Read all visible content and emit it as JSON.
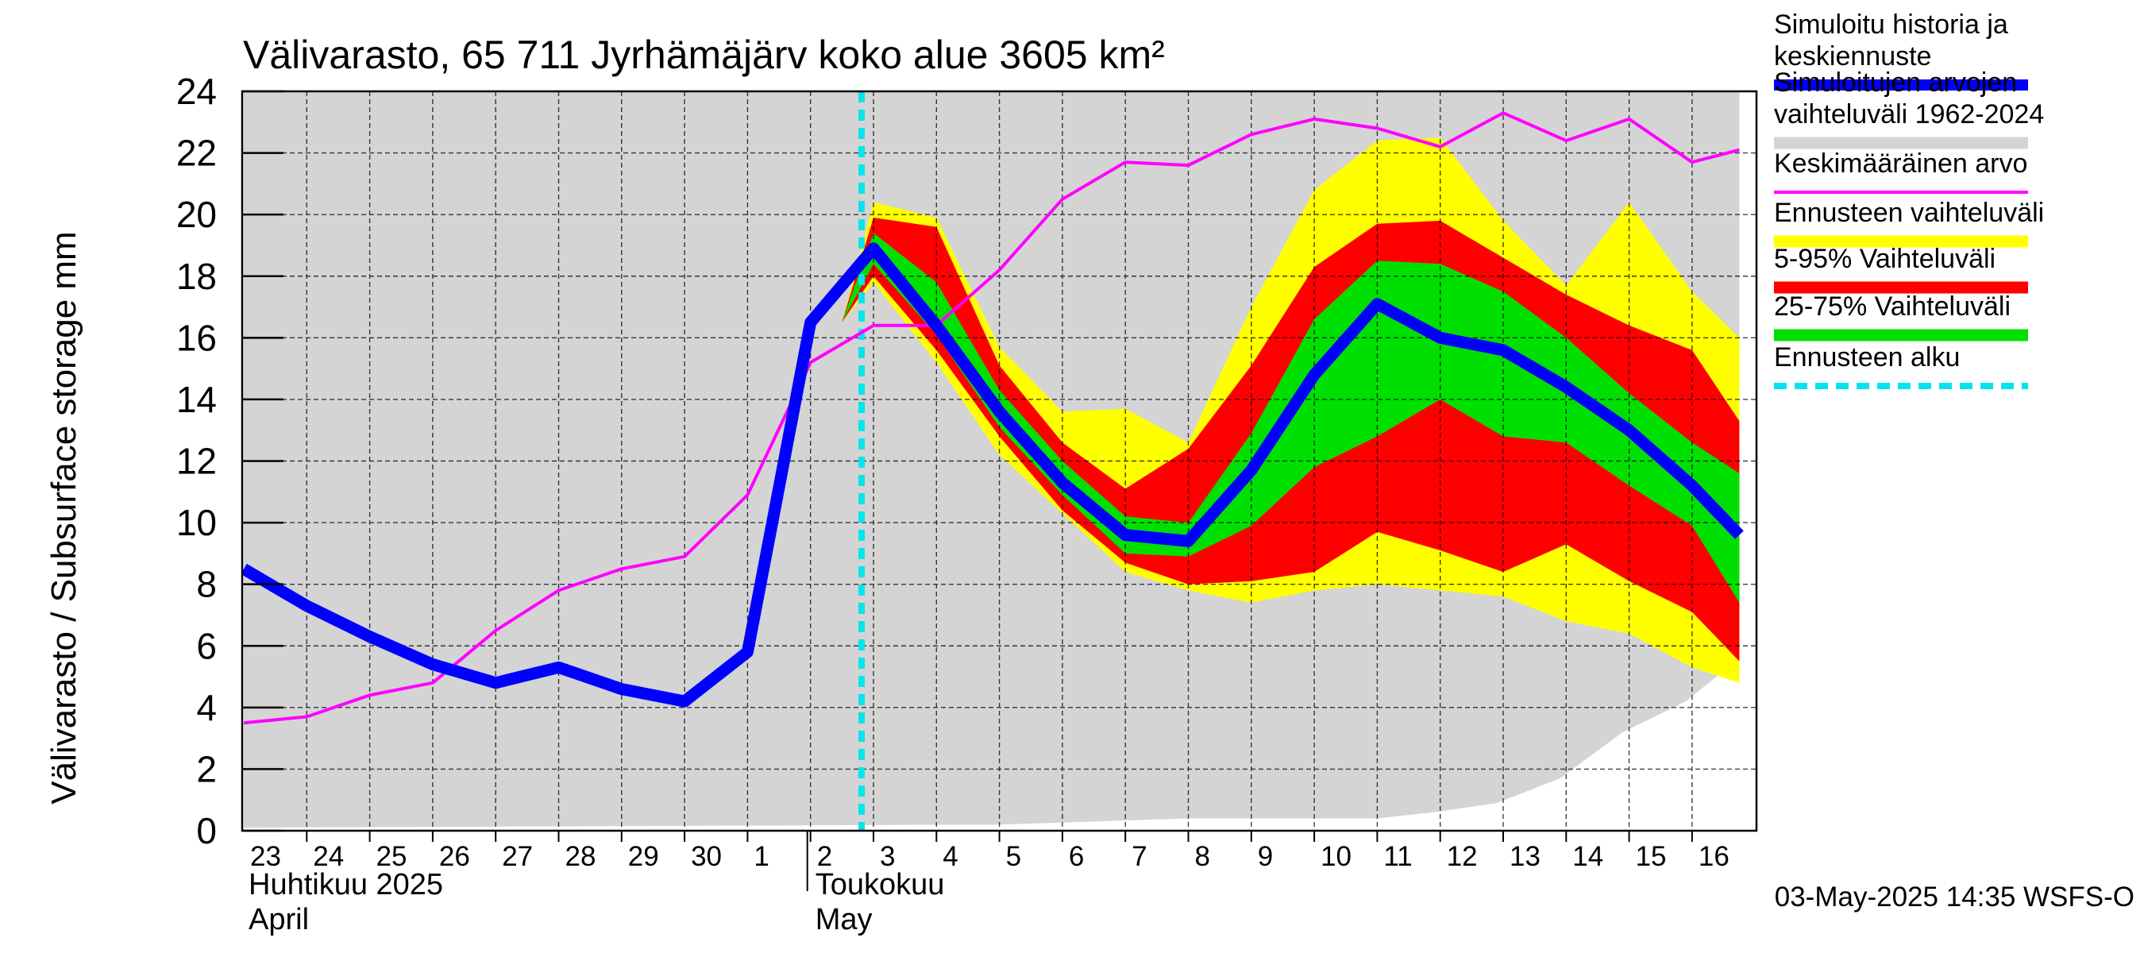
{
  "chart_data": {
    "type": "area",
    "title": "Välivarasto, 65 711 Jyrhämäjärv koko alue 3605 km²",
    "ylabel": "Välivarasto / Subsurface storage  mm",
    "ylim": [
      0,
      24
    ],
    "yticks": [
      0,
      2,
      4,
      6,
      8,
      10,
      12,
      14,
      16,
      18,
      20,
      22,
      24
    ],
    "grid": true,
    "x": [
      "23",
      "24",
      "25",
      "26",
      "27",
      "28",
      "29",
      "30",
      "1",
      "2",
      "3",
      "4",
      "5",
      "6",
      "7",
      "8",
      "9",
      "10",
      "11",
      "12",
      "13",
      "14",
      "15",
      "16"
    ],
    "month_labels": [
      {
        "fi": "Huhtikuu  2025",
        "en": "April",
        "start_index": 0
      },
      {
        "fi": "Toukokuu",
        "en": "May",
        "start_index": 9
      }
    ],
    "forecast_start_day_index": 10,
    "timestamp": "03-May-2025 14:35 WSFS-O",
    "series": [
      {
        "name": "Simuloitujen arvojen vaihteluväli 1962-2024",
        "kind": "band",
        "color": "#d4d4d4",
        "upper_x": [
          0,
          23.75
        ],
        "upper": [
          24,
          24
        ],
        "lower_x": [
          0,
          12,
          15,
          18,
          18.9,
          19.9,
          20.9,
          21.9,
          22.9,
          23.75
        ],
        "lower": [
          0.1,
          0.2,
          0.4,
          0.4,
          0.6,
          0.9,
          1.7,
          3.2,
          4.2,
          5.6
        ]
      },
      {
        "name": "Ennusteen vaihteluväli",
        "kind": "band",
        "color": "#ffff00",
        "x": [
          9.5,
          10,
          11,
          12,
          13,
          14,
          15,
          16,
          17,
          18,
          19,
          20,
          21,
          22,
          23,
          23.75
        ],
        "upper": [
          16.5,
          20.4,
          19.9,
          15.7,
          13.6,
          13.7,
          12.6,
          17.0,
          20.8,
          22.4,
          22.5,
          19.8,
          17.7,
          20.4,
          17.5,
          16.0
        ],
        "lower": [
          16.5,
          17.8,
          15.2,
          12.2,
          10.3,
          8.4,
          7.8,
          7.4,
          7.8,
          8.0,
          7.8,
          7.6,
          6.8,
          6.4,
          5.3,
          4.8
        ]
      },
      {
        "name": "5-95% Vaihteluväli",
        "kind": "band",
        "color": "#ff0000",
        "x": [
          9.5,
          10,
          11,
          12,
          13,
          14,
          15,
          16,
          17,
          18,
          19,
          20,
          21,
          22,
          23,
          23.75
        ],
        "upper": [
          16.5,
          19.9,
          19.6,
          15.1,
          12.6,
          11.1,
          12.4,
          15.1,
          18.3,
          19.7,
          19.8,
          18.6,
          17.4,
          16.4,
          15.6,
          13.3
        ],
        "lower": [
          16.5,
          18.0,
          15.6,
          12.8,
          10.4,
          8.7,
          8.0,
          8.1,
          8.4,
          9.7,
          9.1,
          8.4,
          9.3,
          8.1,
          7.1,
          5.5
        ]
      },
      {
        "name": "25-75% Vaihteluväli",
        "kind": "band",
        "color": "#00e000",
        "x": [
          9.5,
          10,
          11,
          12,
          13,
          14,
          15,
          16,
          17,
          18,
          19,
          20,
          21,
          22,
          23,
          23.75
        ],
        "upper": [
          16.5,
          19.4,
          17.8,
          14.3,
          12.0,
          10.2,
          10.0,
          12.9,
          16.6,
          18.5,
          18.4,
          17.5,
          16.0,
          14.2,
          12.6,
          11.6
        ],
        "lower": [
          16.5,
          18.4,
          16.1,
          13.1,
          10.9,
          9.0,
          8.9,
          9.9,
          11.8,
          12.8,
          14.0,
          12.8,
          12.6,
          11.2,
          9.9,
          7.4
        ]
      },
      {
        "name": "Keskimääräinen arvo",
        "kind": "line",
        "color": "#ff00ff",
        "x": [
          0,
          1,
          2,
          3,
          4,
          5,
          6,
          7,
          8,
          9,
          10,
          11,
          12,
          13,
          14,
          15,
          16,
          17,
          18,
          19,
          20,
          21,
          22,
          23,
          23.75
        ],
        "values": [
          3.5,
          3.7,
          4.4,
          4.8,
          6.5,
          7.8,
          8.5,
          8.9,
          10.9,
          15.2,
          16.4,
          16.4,
          18.2,
          20.5,
          21.7,
          21.6,
          22.6,
          23.1,
          22.8,
          22.2,
          23.3,
          22.4,
          23.1,
          21.7,
          22.1
        ]
      },
      {
        "name": "Simuloitu historia ja keskiennuste",
        "kind": "line",
        "color": "#0000ff",
        "x": [
          0,
          1,
          2,
          3,
          4,
          5,
          6,
          7,
          8,
          9,
          10,
          11,
          12,
          13,
          14,
          15,
          16,
          17,
          18,
          19,
          20,
          21,
          22,
          23,
          23.75
        ],
        "values": [
          8.5,
          7.3,
          6.3,
          5.4,
          4.8,
          5.3,
          4.6,
          4.2,
          5.8,
          16.5,
          18.9,
          16.4,
          13.6,
          11.3,
          9.6,
          9.4,
          11.7,
          14.8,
          17.1,
          16.0,
          15.6,
          14.4,
          13.0,
          11.2,
          9.6
        ]
      }
    ]
  },
  "legend": [
    {
      "lines": [
        "Simuloitu historia ja",
        "keskiennuste"
      ],
      "color": "#0000ff",
      "style": "thick"
    },
    {
      "lines": [
        "Simuloitujen arvojen",
        "vaihteluväli 1962-2024"
      ],
      "color": "#d4d4d4",
      "style": "band"
    },
    {
      "lines": [
        "Keskimääräinen arvo"
      ],
      "color": "#ff00ff",
      "style": "thin"
    },
    {
      "lines": [
        "Ennusteen vaihteluväli"
      ],
      "color": "#ffff00",
      "style": "band"
    },
    {
      "lines": [
        "5-95% Vaihteluväli"
      ],
      "color": "#ff0000",
      "style": "band"
    },
    {
      "lines": [
        "25-75% Vaihteluväli"
      ],
      "color": "#00e000",
      "style": "band"
    },
    {
      "lines": [
        "Ennusteen alku"
      ],
      "color": "#00e5ee",
      "style": "dashed"
    }
  ]
}
